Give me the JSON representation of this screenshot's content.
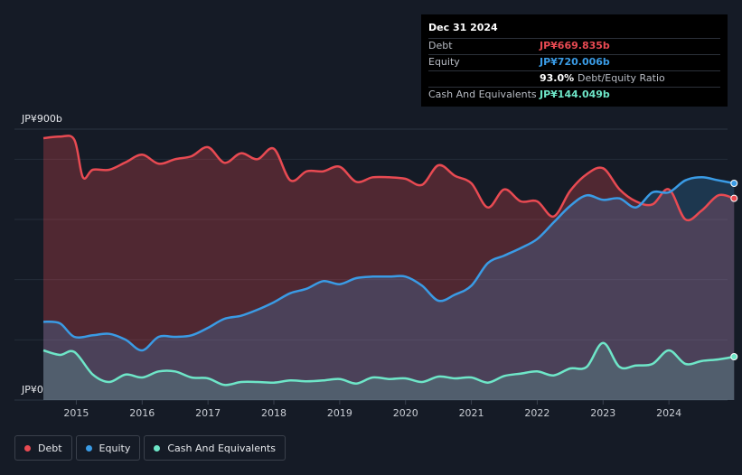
{
  "tooltip": {
    "date": "Dec 31 2024",
    "rows": [
      {
        "label": "Debt",
        "value": "JP¥669.835b",
        "color": "#e84a52"
      },
      {
        "label": "Equity",
        "value": "JP¥720.006b",
        "color": "#3a9be5"
      },
      {
        "label": "",
        "value": "93.0%",
        "suffix": "Debt/Equity Ratio",
        "color": "#ffffff"
      },
      {
        "label": "Cash And Equivalents",
        "value": "JP¥144.049b",
        "color": "#6ee6c8"
      }
    ]
  },
  "legend": [
    {
      "label": "Debt",
      "color": "#e84a52"
    },
    {
      "label": "Equity",
      "color": "#3a9be5"
    },
    {
      "label": "Cash And Equivalents",
      "color": "#6ee6c8"
    }
  ],
  "chart_data": {
    "type": "area",
    "ylabel_top": "JP¥900b",
    "ylabel_bottom": "JP¥0",
    "ylim": [
      0,
      900
    ],
    "xlim": [
      2014.5,
      2025.0
    ],
    "x_ticks": [
      "2015",
      "2016",
      "2017",
      "2018",
      "2019",
      "2020",
      "2021",
      "2022",
      "2023",
      "2024"
    ],
    "series": [
      {
        "name": "Debt",
        "color": "#e84a52",
        "points": [
          [
            2014.5,
            870
          ],
          [
            2014.75,
            875
          ],
          [
            2014.97,
            865
          ],
          [
            2015.1,
            740
          ],
          [
            2015.25,
            765
          ],
          [
            2015.5,
            765
          ],
          [
            2015.75,
            790
          ],
          [
            2016.0,
            815
          ],
          [
            2016.25,
            785
          ],
          [
            2016.5,
            800
          ],
          [
            2016.75,
            810
          ],
          [
            2017.0,
            840
          ],
          [
            2017.25,
            788
          ],
          [
            2017.5,
            820
          ],
          [
            2017.75,
            800
          ],
          [
            2018.0,
            835
          ],
          [
            2018.25,
            730
          ],
          [
            2018.5,
            760
          ],
          [
            2018.75,
            760
          ],
          [
            2019.0,
            775
          ],
          [
            2019.25,
            725
          ],
          [
            2019.5,
            740
          ],
          [
            2019.75,
            740
          ],
          [
            2020.0,
            735
          ],
          [
            2020.25,
            715
          ],
          [
            2020.5,
            780
          ],
          [
            2020.75,
            745
          ],
          [
            2021.0,
            720
          ],
          [
            2021.25,
            640
          ],
          [
            2021.5,
            700
          ],
          [
            2021.75,
            660
          ],
          [
            2022.0,
            660
          ],
          [
            2022.25,
            610
          ],
          [
            2022.5,
            695
          ],
          [
            2022.75,
            750
          ],
          [
            2023.0,
            770
          ],
          [
            2023.25,
            700
          ],
          [
            2023.5,
            660
          ],
          [
            2023.75,
            650
          ],
          [
            2024.0,
            700
          ],
          [
            2024.25,
            600
          ],
          [
            2024.5,
            630
          ],
          [
            2024.75,
            680
          ],
          [
            2024.99,
            670
          ]
        ]
      },
      {
        "name": "Equity",
        "color": "#3a9be5",
        "points": [
          [
            2014.5,
            260
          ],
          [
            2014.75,
            255
          ],
          [
            2014.97,
            210
          ],
          [
            2015.25,
            215
          ],
          [
            2015.5,
            220
          ],
          [
            2015.75,
            200
          ],
          [
            2016.0,
            165
          ],
          [
            2016.25,
            210
          ],
          [
            2016.5,
            210
          ],
          [
            2016.75,
            215
          ],
          [
            2017.0,
            240
          ],
          [
            2017.25,
            270
          ],
          [
            2017.5,
            280
          ],
          [
            2017.75,
            300
          ],
          [
            2018.0,
            325
          ],
          [
            2018.25,
            355
          ],
          [
            2018.5,
            370
          ],
          [
            2018.75,
            395
          ],
          [
            2019.0,
            385
          ],
          [
            2019.25,
            405
          ],
          [
            2019.5,
            410
          ],
          [
            2019.75,
            410
          ],
          [
            2020.0,
            410
          ],
          [
            2020.25,
            380
          ],
          [
            2020.5,
            330
          ],
          [
            2020.75,
            350
          ],
          [
            2021.0,
            380
          ],
          [
            2021.25,
            455
          ],
          [
            2021.5,
            480
          ],
          [
            2021.75,
            505
          ],
          [
            2022.0,
            535
          ],
          [
            2022.25,
            590
          ],
          [
            2022.5,
            645
          ],
          [
            2022.75,
            680
          ],
          [
            2023.0,
            665
          ],
          [
            2023.25,
            670
          ],
          [
            2023.5,
            640
          ],
          [
            2023.75,
            690
          ],
          [
            2024.0,
            690
          ],
          [
            2024.25,
            730
          ],
          [
            2024.5,
            740
          ],
          [
            2024.75,
            730
          ],
          [
            2024.99,
            720
          ]
        ]
      },
      {
        "name": "Cash And Equivalents",
        "color": "#6ee6c8",
        "points": [
          [
            2014.5,
            165
          ],
          [
            2014.75,
            150
          ],
          [
            2014.97,
            160
          ],
          [
            2015.25,
            85
          ],
          [
            2015.5,
            60
          ],
          [
            2015.75,
            85
          ],
          [
            2016.0,
            75
          ],
          [
            2016.25,
            95
          ],
          [
            2016.5,
            95
          ],
          [
            2016.75,
            75
          ],
          [
            2017.0,
            72
          ],
          [
            2017.25,
            50
          ],
          [
            2017.5,
            60
          ],
          [
            2017.75,
            60
          ],
          [
            2018.0,
            58
          ],
          [
            2018.25,
            65
          ],
          [
            2018.5,
            62
          ],
          [
            2018.75,
            65
          ],
          [
            2019.0,
            70
          ],
          [
            2019.25,
            55
          ],
          [
            2019.5,
            75
          ],
          [
            2019.75,
            70
          ],
          [
            2020.0,
            72
          ],
          [
            2020.25,
            60
          ],
          [
            2020.5,
            78
          ],
          [
            2020.75,
            72
          ],
          [
            2021.0,
            75
          ],
          [
            2021.25,
            58
          ],
          [
            2021.5,
            80
          ],
          [
            2021.75,
            88
          ],
          [
            2022.0,
            95
          ],
          [
            2022.25,
            82
          ],
          [
            2022.5,
            105
          ],
          [
            2022.75,
            110
          ],
          [
            2023.0,
            190
          ],
          [
            2023.25,
            110
          ],
          [
            2023.5,
            115
          ],
          [
            2023.75,
            120
          ],
          [
            2024.0,
            165
          ],
          [
            2024.25,
            120
          ],
          [
            2024.5,
            130
          ],
          [
            2024.75,
            135
          ],
          [
            2024.99,
            144
          ]
        ]
      }
    ]
  }
}
